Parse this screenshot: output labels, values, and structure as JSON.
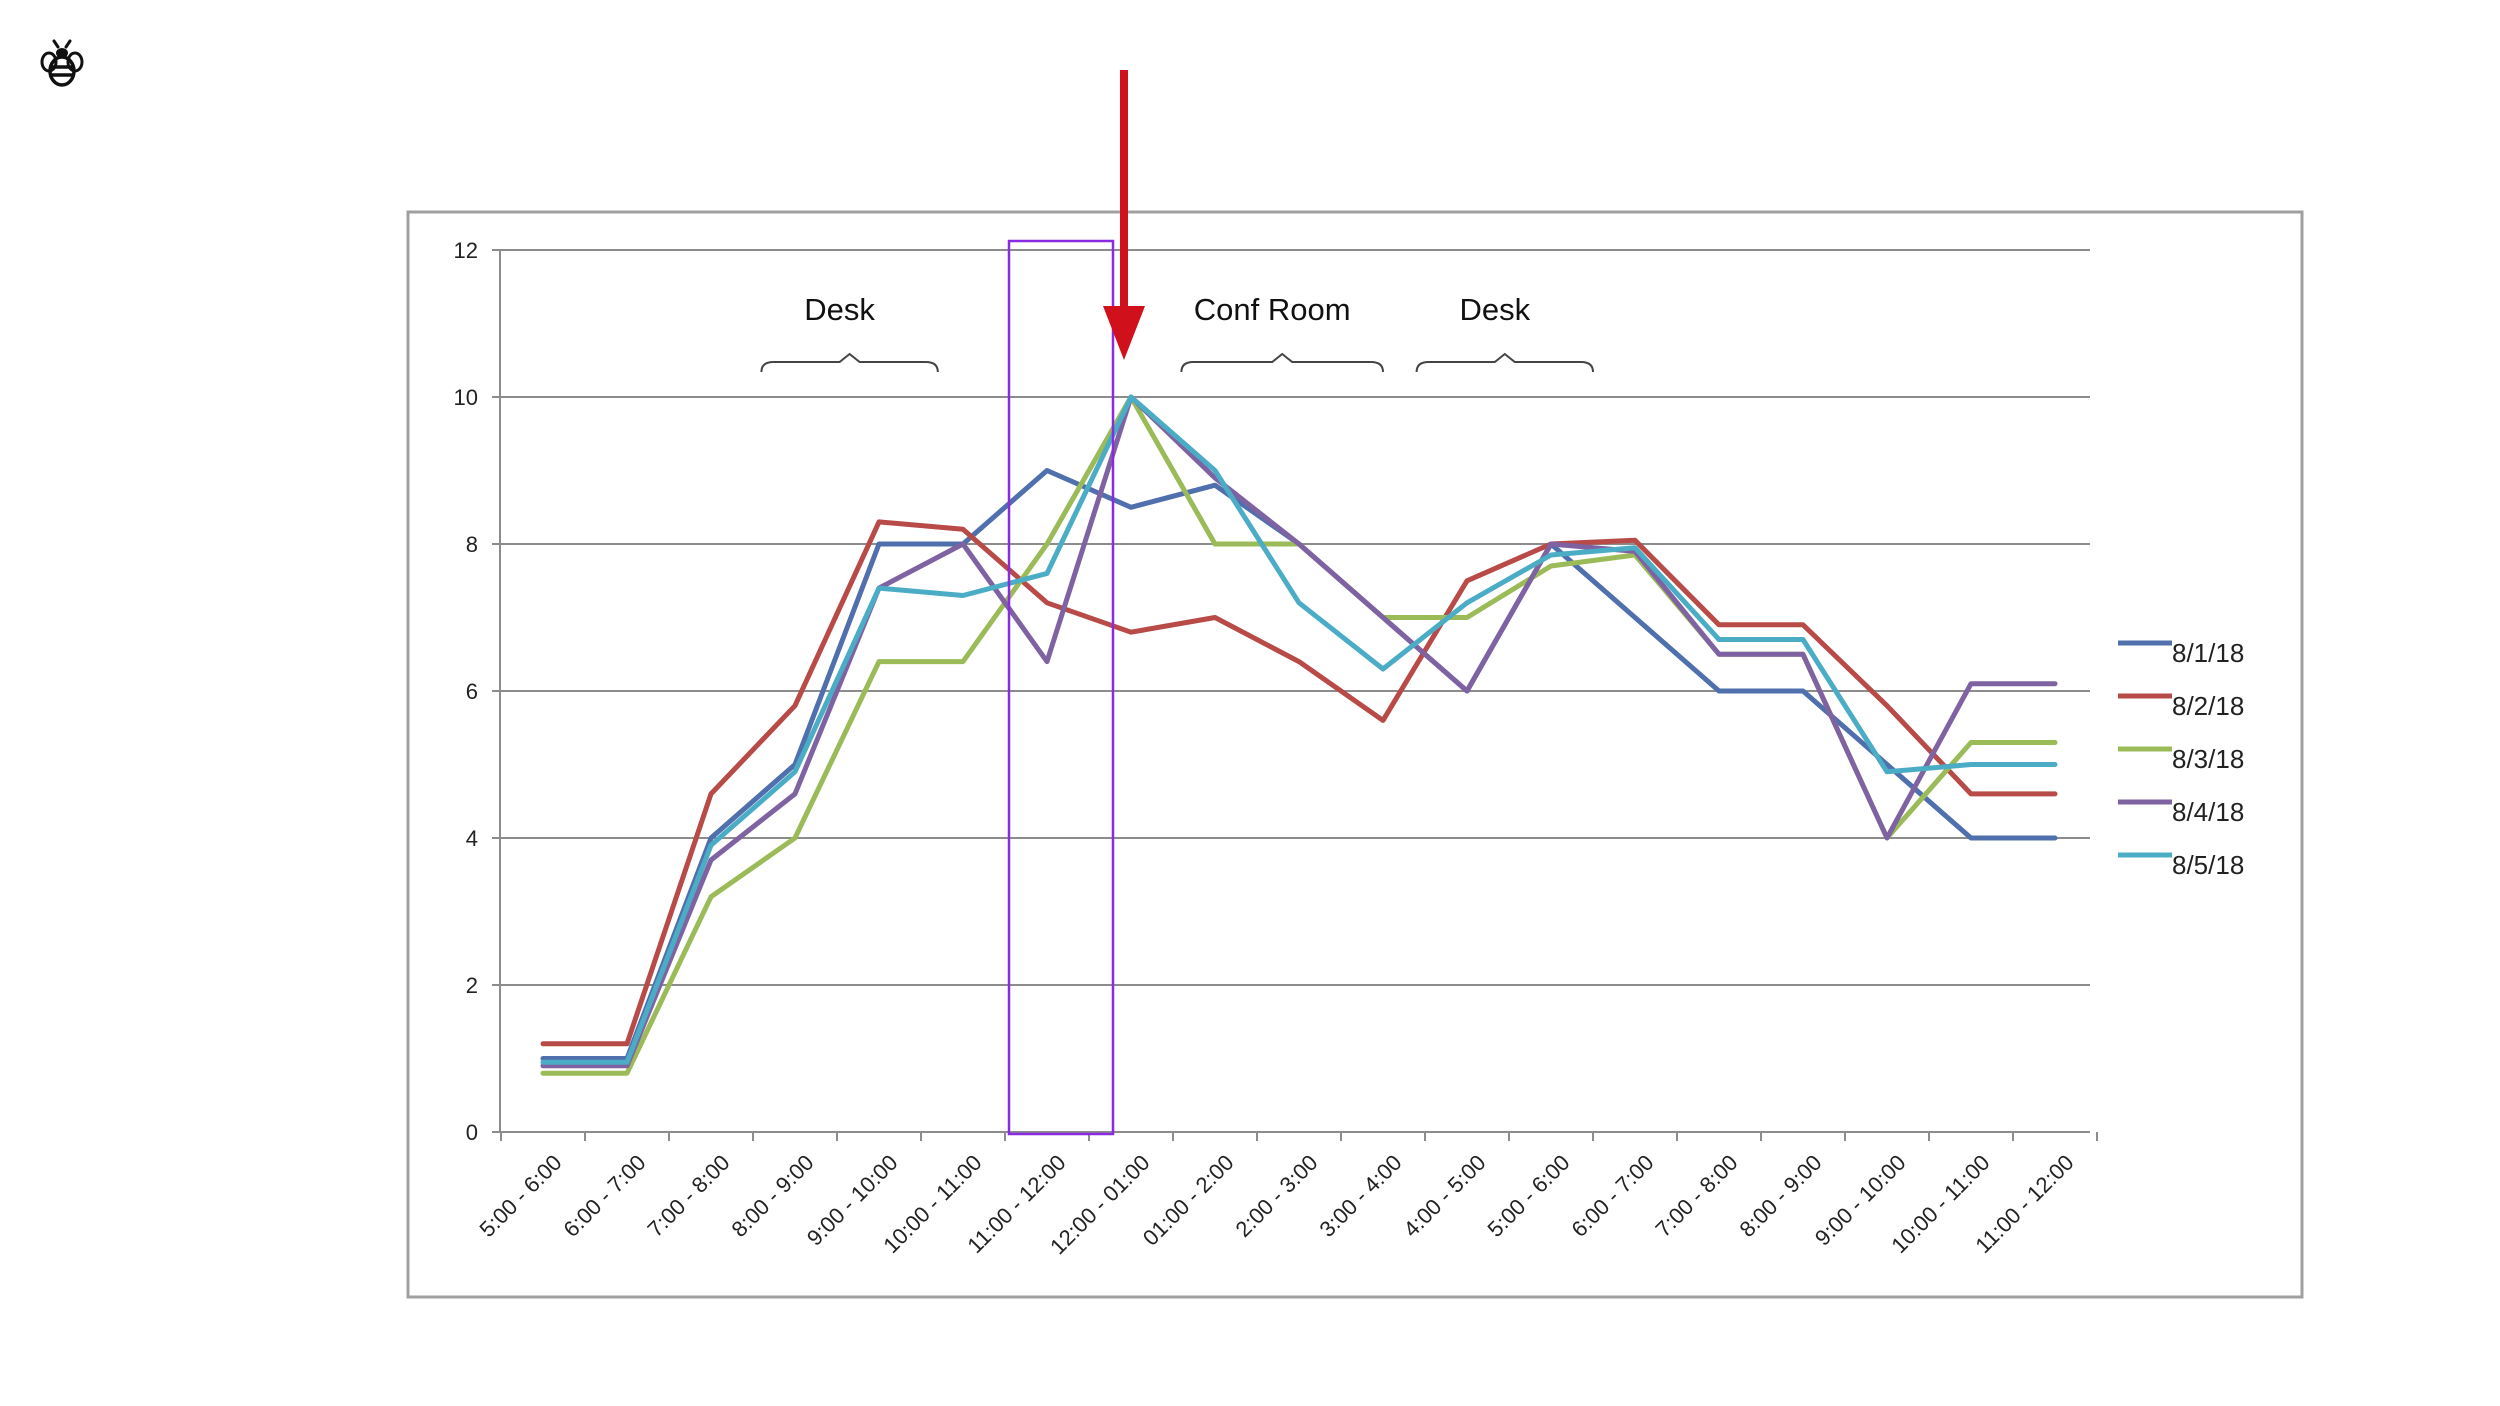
{
  "chart_data": {
    "type": "line",
    "title": "",
    "xlabel": "",
    "ylabel": "",
    "ylim": [
      0,
      12
    ],
    "yticks": [
      0,
      2,
      4,
      6,
      8,
      10,
      12
    ],
    "grid": true,
    "legend_position": "right",
    "categories": [
      "5:00 - 6:00",
      "6:00 - 7:00",
      "7:00 - 8:00",
      "8:00 - 9:00",
      "9:00 - 10:00",
      "10:00 - 11:00",
      "11:00 - 12:00",
      "12:00 - 01:00",
      "01:00 - 2:00",
      "2:00 - 3:00",
      "3:00 - 4:00",
      "4:00 - 5:00",
      "5:00 - 6:00",
      "6:00 - 7:00",
      "7:00 - 8:00",
      "8:00 - 9:00",
      "9:00 - 10:00",
      "10:00 - 11:00",
      "11:00 - 12:00"
    ],
    "series": [
      {
        "name": "8/1/18",
        "color": "#4f6fad",
        "values": [
          1.0,
          1.0,
          4.0,
          5.0,
          8.0,
          8.0,
          9.0,
          8.5,
          8.8,
          8.0,
          7.0,
          6.0,
          8.0,
          7.0,
          6.0,
          6.0,
          5.0,
          4.0,
          4.0
        ]
      },
      {
        "name": "8/2/18",
        "color": "#b84a47",
        "values": [
          1.2,
          1.2,
          4.6,
          5.8,
          8.3,
          8.2,
          7.2,
          6.8,
          7.0,
          6.4,
          5.6,
          7.5,
          8.0,
          8.05,
          6.9,
          6.9,
          5.8,
          4.6,
          4.6
        ]
      },
      {
        "name": "8/3/18",
        "color": "#9bbb59",
        "values": [
          0.8,
          0.8,
          3.2,
          4.0,
          6.4,
          6.4,
          8.0,
          10.0,
          8.0,
          8.0,
          7.0,
          7.0,
          7.7,
          7.85,
          6.5,
          6.5,
          4.0,
          5.3,
          5.3
        ]
      },
      {
        "name": "8/4/18",
        "color": "#7f62a2",
        "values": [
          0.9,
          0.9,
          3.7,
          4.6,
          7.4,
          8.0,
          6.4,
          10.0,
          8.9,
          8.0,
          7.0,
          6.0,
          8.0,
          7.9,
          6.5,
          6.5,
          4.0,
          6.1,
          6.1
        ]
      },
      {
        "name": "8/5/18",
        "color": "#4bacc6",
        "values": [
          0.95,
          0.95,
          3.9,
          4.9,
          7.4,
          7.3,
          7.6,
          10.0,
          9.0,
          7.2,
          6.3,
          7.2,
          7.85,
          7.95,
          6.7,
          6.7,
          4.9,
          5.0,
          5.0
        ]
      }
    ],
    "annotations": [
      "Desk",
      "Conf Room",
      "Desk"
    ],
    "highlight_range": [
      "11:00 - 12:00"
    ],
    "arrow_at": "12:00 - 01:00",
    "colors": {
      "highlight_box": "#8a2be2",
      "arrow": "#d0111b",
      "gridline": "#8c8c8c",
      "frame": "#a0a0a0"
    }
  },
  "icons": {
    "logo": "bee-icon"
  }
}
